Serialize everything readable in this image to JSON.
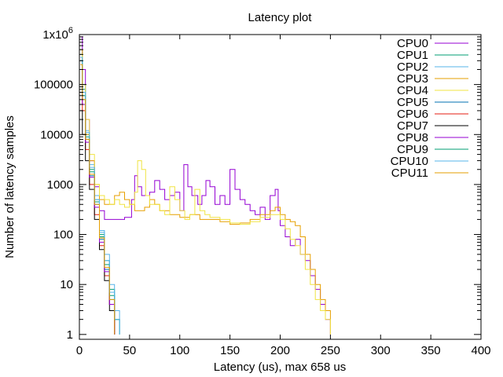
{
  "chart_data": {
    "type": "line",
    "title": "Latency plot",
    "xlabel": "Latency (us), max 658 us",
    "ylabel": "Number of latency samples",
    "xlim": [
      0,
      400
    ],
    "ylim": [
      0.8,
      1000000
    ],
    "yscale": "log",
    "xticks": [
      0,
      50,
      100,
      150,
      200,
      250,
      300,
      350,
      400
    ],
    "yticks": [
      {
        "value": 1,
        "label": "1"
      },
      {
        "value": 10,
        "label": "10"
      },
      {
        "value": 100,
        "label": "100"
      },
      {
        "value": 1000,
        "label": "1000"
      },
      {
        "value": 10000,
        "label": "10000"
      },
      {
        "value": 100000,
        "label": "100000"
      },
      {
        "value": 1000000,
        "label": "1x10",
        "sup": "6"
      }
    ],
    "legend_position": "top-right",
    "series": [
      {
        "name": "CPU0",
        "color": "#9400d3",
        "points": [
          [
            1,
            900000
          ],
          [
            3,
            200000
          ],
          [
            6,
            20000
          ],
          [
            10,
            3000
          ],
          [
            15,
            900
          ],
          [
            20,
            300
          ],
          [
            25,
            200
          ],
          [
            35,
            200
          ],
          [
            45,
            220
          ],
          [
            52,
            500
          ],
          [
            55,
            1500
          ],
          [
            58,
            900
          ],
          [
            62,
            600
          ],
          [
            70,
            700
          ],
          [
            75,
            1200
          ],
          [
            80,
            800
          ],
          [
            85,
            500
          ],
          [
            90,
            600
          ],
          [
            95,
            700
          ],
          [
            100,
            300
          ],
          [
            104,
            2500
          ],
          [
            108,
            900
          ],
          [
            112,
            600
          ],
          [
            118,
            400
          ],
          [
            122,
            600
          ],
          [
            126,
            1200
          ],
          [
            130,
            900
          ],
          [
            135,
            400
          ],
          [
            140,
            600
          ],
          [
            145,
            400
          ],
          [
            150,
            2000
          ],
          [
            155,
            800
          ],
          [
            160,
            500
          ],
          [
            165,
            400
          ],
          [
            170,
            300
          ],
          [
            175,
            250
          ],
          [
            180,
            350
          ],
          [
            185,
            200
          ],
          [
            190,
            600
          ],
          [
            195,
            800
          ],
          [
            198,
            300
          ],
          [
            200,
            150
          ],
          [
            205,
            90
          ],
          [
            210,
            60
          ],
          [
            215,
            80
          ],
          [
            220,
            40
          ],
          [
            225,
            30
          ],
          [
            230,
            15
          ],
          [
            235,
            8
          ],
          [
            240,
            4
          ],
          [
            245,
            2
          ],
          [
            250,
            1
          ]
        ]
      },
      {
        "name": "CPU1",
        "color": "#009e73",
        "points": [
          [
            1,
            400000
          ],
          [
            3,
            80000
          ],
          [
            6,
            10000
          ],
          [
            10,
            2000
          ],
          [
            15,
            500
          ],
          [
            20,
            100
          ],
          [
            25,
            30
          ],
          [
            30,
            8
          ],
          [
            35,
            2
          ],
          [
            40,
            1
          ]
        ]
      },
      {
        "name": "CPU2",
        "color": "#56b4e9",
        "points": [
          [
            1,
            500000
          ],
          [
            3,
            100000
          ],
          [
            6,
            12000
          ],
          [
            10,
            2500
          ],
          [
            15,
            600
          ],
          [
            20,
            120
          ],
          [
            25,
            40
          ],
          [
            30,
            10
          ],
          [
            35,
            3
          ],
          [
            40,
            1
          ]
        ]
      },
      {
        "name": "CPU3",
        "color": "#e69f00",
        "points": [
          [
            1,
            500000
          ],
          [
            3,
            60000
          ],
          [
            6,
            10000
          ],
          [
            10,
            3000
          ],
          [
            15,
            1000
          ],
          [
            20,
            500
          ],
          [
            25,
            400
          ],
          [
            30,
            400
          ],
          [
            35,
            600
          ],
          [
            40,
            700
          ],
          [
            45,
            500
          ],
          [
            50,
            400
          ],
          [
            55,
            300
          ],
          [
            60,
            300
          ],
          [
            65,
            350
          ],
          [
            70,
            500
          ],
          [
            75,
            400
          ],
          [
            80,
            300
          ],
          [
            90,
            250
          ],
          [
            100,
            220
          ],
          [
            110,
            250
          ],
          [
            120,
            200
          ],
          [
            130,
            200
          ],
          [
            140,
            180
          ],
          [
            150,
            160
          ],
          [
            160,
            170
          ],
          [
            170,
            200
          ],
          [
            180,
            250
          ],
          [
            190,
            300
          ],
          [
            195,
            350
          ],
          [
            200,
            250
          ],
          [
            205,
            200
          ],
          [
            210,
            180
          ],
          [
            215,
            150
          ],
          [
            220,
            90
          ],
          [
            225,
            40
          ],
          [
            230,
            20
          ],
          [
            235,
            10
          ],
          [
            240,
            5
          ],
          [
            245,
            3
          ],
          [
            250,
            1
          ]
        ]
      },
      {
        "name": "CPU4",
        "color": "#f0e442",
        "points": [
          [
            1,
            400000
          ],
          [
            3,
            100000
          ],
          [
            6,
            20000
          ],
          [
            10,
            4000
          ],
          [
            15,
            1000
          ],
          [
            20,
            600
          ],
          [
            25,
            500
          ],
          [
            30,
            400
          ],
          [
            35,
            500
          ],
          [
            40,
            400
          ],
          [
            45,
            350
          ],
          [
            50,
            400
          ],
          [
            55,
            700
          ],
          [
            58,
            3000
          ],
          [
            62,
            2000
          ],
          [
            66,
            600
          ],
          [
            70,
            400
          ],
          [
            80,
            300
          ],
          [
            85,
            250
          ],
          [
            90,
            900
          ],
          [
            95,
            500
          ],
          [
            100,
            300
          ],
          [
            105,
            200
          ],
          [
            110,
            250
          ],
          [
            115,
            800
          ],
          [
            120,
            300
          ],
          [
            125,
            250
          ],
          [
            130,
            220
          ],
          [
            140,
            200
          ],
          [
            150,
            170
          ],
          [
            160,
            160
          ],
          [
            170,
            180
          ],
          [
            180,
            220
          ],
          [
            190,
            250
          ],
          [
            200,
            200
          ],
          [
            205,
            130
          ],
          [
            210,
            80
          ],
          [
            215,
            60
          ],
          [
            220,
            40
          ],
          [
            225,
            20
          ],
          [
            230,
            10
          ],
          [
            235,
            5
          ],
          [
            240,
            3
          ],
          [
            245,
            2
          ],
          [
            250,
            1
          ]
        ]
      },
      {
        "name": "CPU5",
        "color": "#0072b2",
        "points": [
          [
            1,
            300000
          ],
          [
            3,
            50000
          ],
          [
            6,
            8000
          ],
          [
            10,
            1500
          ],
          [
            15,
            400
          ],
          [
            20,
            80
          ],
          [
            25,
            20
          ],
          [
            30,
            5
          ],
          [
            35,
            1
          ]
        ]
      },
      {
        "name": "CPU6",
        "color": "#e51e10",
        "points": [
          [
            1,
            100000
          ],
          [
            3,
            30000
          ],
          [
            6,
            5000
          ],
          [
            10,
            1000
          ],
          [
            15,
            250
          ],
          [
            20,
            60
          ],
          [
            25,
            15
          ],
          [
            30,
            4
          ],
          [
            35,
            1
          ]
        ]
      },
      {
        "name": "CPU7",
        "color": "#000000",
        "points": [
          [
            1,
            30000
          ],
          [
            3,
            10000
          ],
          [
            6,
            3000
          ],
          [
            10,
            800
          ],
          [
            15,
            200
          ],
          [
            20,
            50
          ],
          [
            25,
            12
          ],
          [
            30,
            3
          ],
          [
            35,
            1
          ]
        ]
      },
      {
        "name": "CPU8",
        "color": "#9400d3",
        "points": [
          [
            1,
            200000
          ],
          [
            3,
            40000
          ],
          [
            6,
            7000
          ],
          [
            10,
            1400
          ],
          [
            15,
            350
          ],
          [
            20,
            70
          ],
          [
            25,
            18
          ],
          [
            30,
            4
          ],
          [
            35,
            1
          ]
        ]
      },
      {
        "name": "CPU9",
        "color": "#009e73",
        "points": [
          [
            1,
            300000
          ],
          [
            3,
            60000
          ],
          [
            6,
            9000
          ],
          [
            10,
            1800
          ],
          [
            15,
            450
          ],
          [
            20,
            90
          ],
          [
            25,
            25
          ],
          [
            30,
            6
          ],
          [
            35,
            2
          ],
          [
            40,
            1
          ]
        ]
      },
      {
        "name": "CPU10",
        "color": "#56b4e9",
        "points": [
          [
            1,
            350000
          ],
          [
            3,
            70000
          ],
          [
            6,
            11000
          ],
          [
            10,
            2200
          ],
          [
            15,
            500
          ],
          [
            20,
            110
          ],
          [
            25,
            30
          ],
          [
            30,
            7
          ],
          [
            35,
            2
          ],
          [
            40,
            1
          ]
        ]
      },
      {
        "name": "CPU11",
        "color": "#e69f00",
        "points": [
          [
            1,
            250000
          ],
          [
            3,
            50000
          ],
          [
            6,
            8000
          ],
          [
            10,
            1600
          ],
          [
            15,
            400
          ],
          [
            20,
            85
          ],
          [
            25,
            22
          ],
          [
            30,
            5
          ],
          [
            35,
            1
          ]
        ]
      }
    ]
  }
}
